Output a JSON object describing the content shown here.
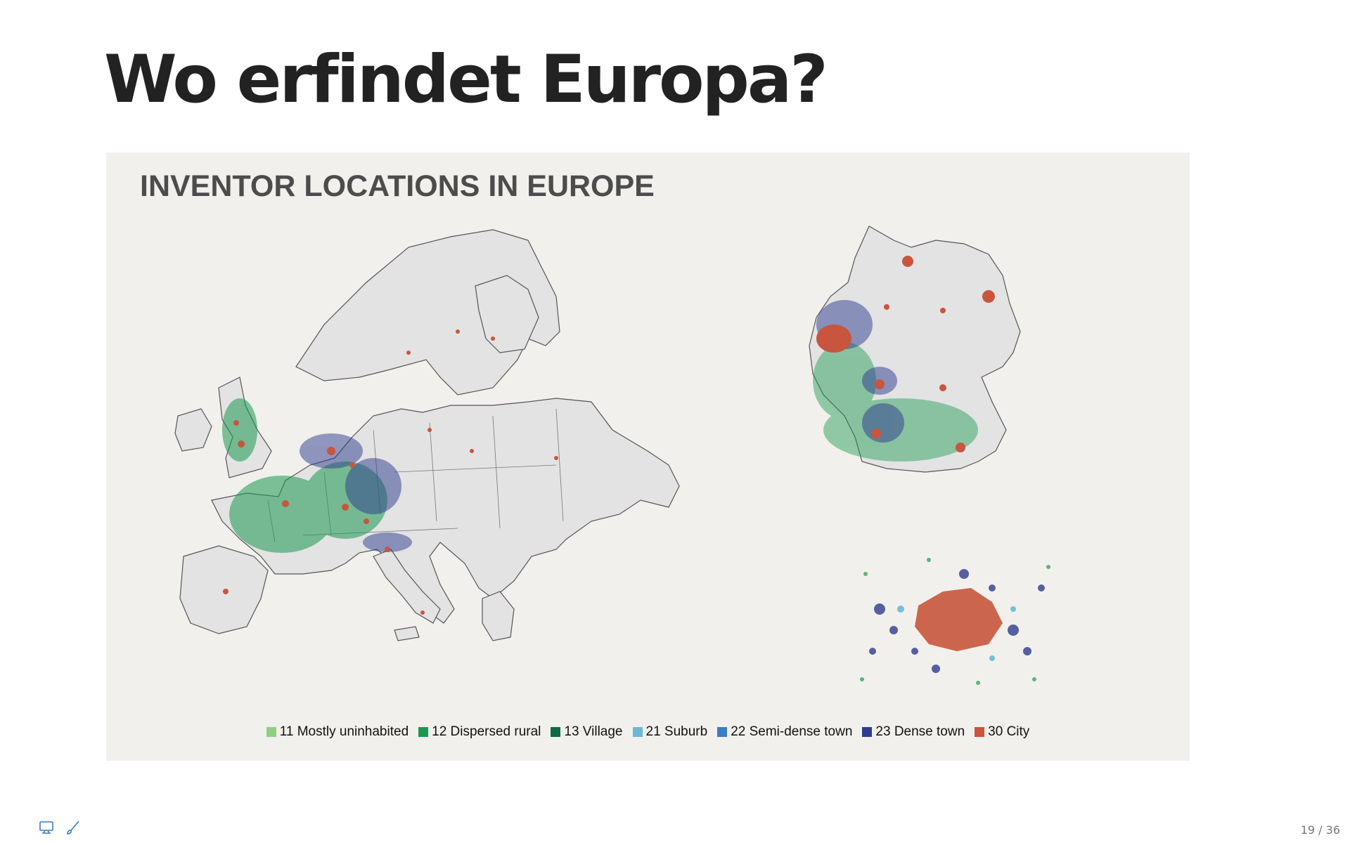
{
  "slide": {
    "title": "Wo erfindet Europa?",
    "page_counter": "19 / 36"
  },
  "figure": {
    "title": "INVENTOR LOCATIONS IN EUROPE",
    "colors": {
      "background": "#f2f0ec",
      "land": "#e3e3e3",
      "border": "#555555"
    },
    "maps": [
      {
        "name": "europe-map"
      },
      {
        "name": "germany-map"
      },
      {
        "name": "city-detail-map"
      }
    ],
    "legend": [
      {
        "label": "11 Mostly uninhabited",
        "color": "#8fcf82"
      },
      {
        "label": "12 Dispersed rural",
        "color": "#1a9850"
      },
      {
        "label": "13 Village",
        "color": "#0d6b43"
      },
      {
        "label": "21 Suburb",
        "color": "#6bb7d6"
      },
      {
        "label": "22 Semi-dense town",
        "color": "#3c7cc4"
      },
      {
        "label": "23 Dense town",
        "color": "#2e3b8f"
      },
      {
        "label": "30 City",
        "color": "#c8553d"
      }
    ]
  },
  "toolbar": {
    "icons": [
      "presentation-icon",
      "brush-icon"
    ]
  }
}
